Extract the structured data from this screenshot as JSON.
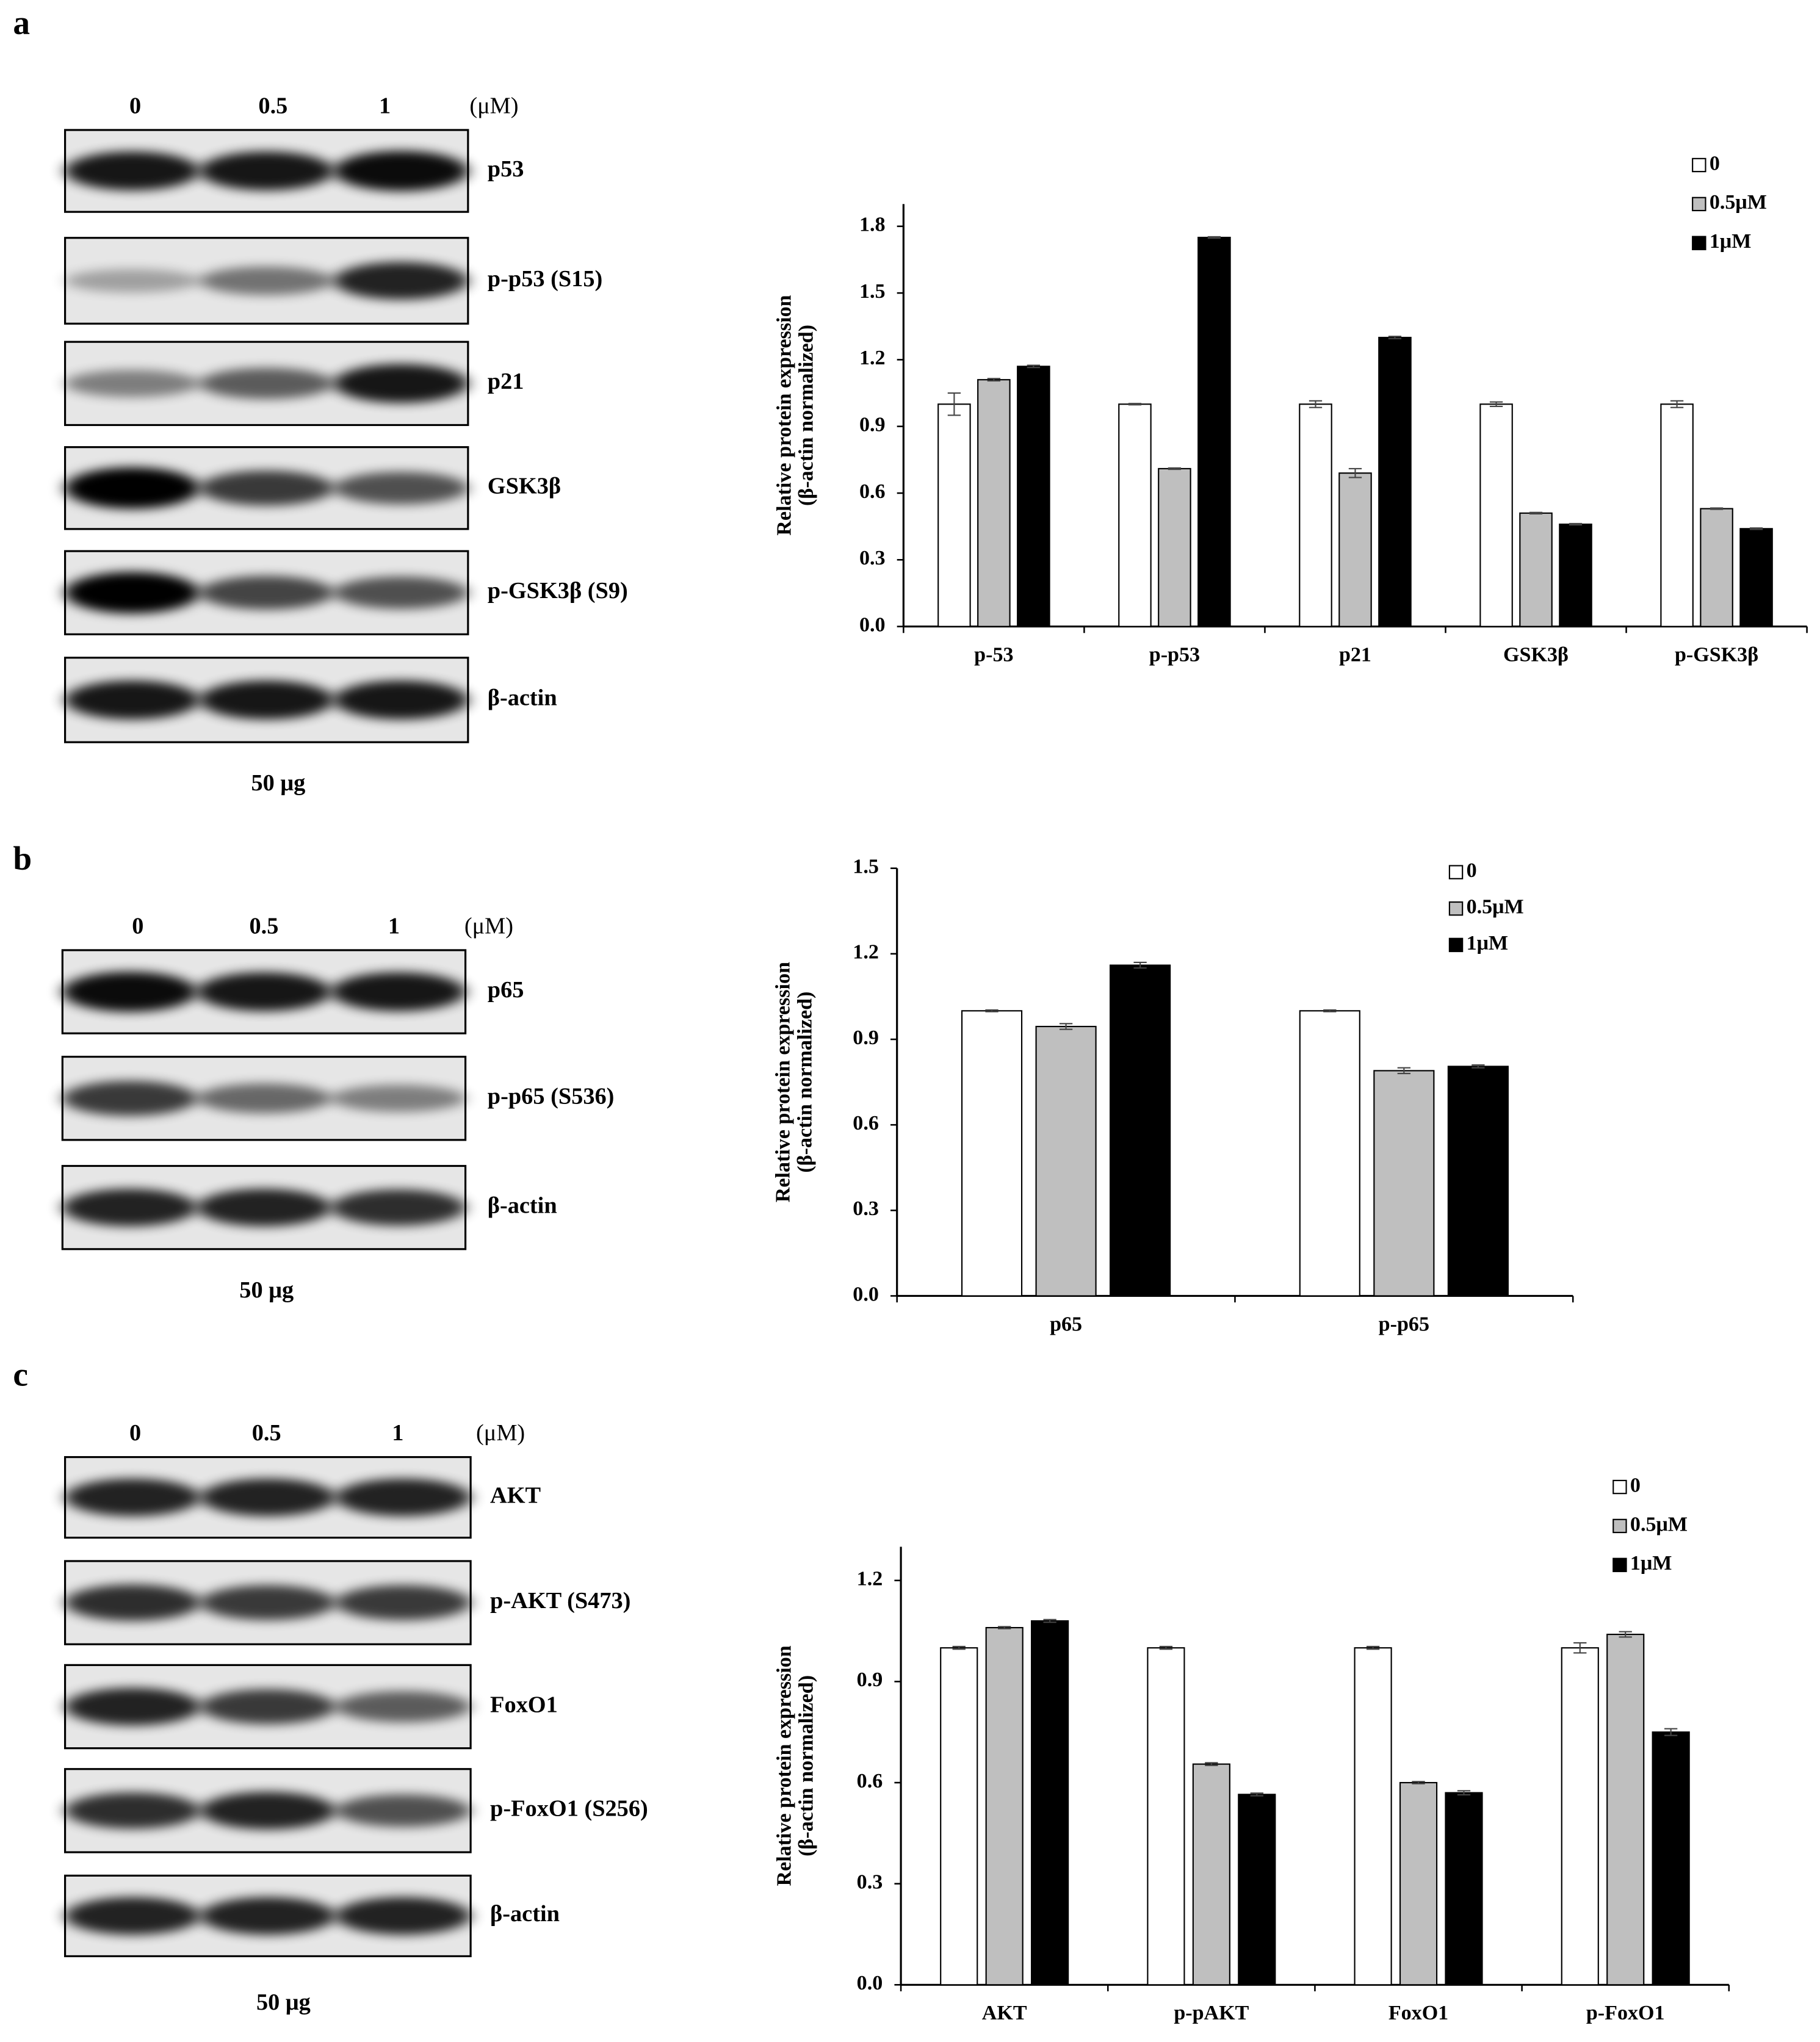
{
  "panels": [
    {
      "label": "a",
      "lanes": [
        "0",
        "0.5",
        "1"
      ],
      "unit": "(μM)",
      "bands": [
        "p53",
        "p-p53 (S15)",
        "p21",
        "GSK3β",
        "p-GSK3β (S9)",
        "β-actin"
      ],
      "loading": "50 μg"
    },
    {
      "label": "b",
      "lanes": [
        "0",
        "0.5",
        "1"
      ],
      "unit": "(μM)",
      "bands": [
        "p65",
        "p-p65 (S536)",
        "β-actin"
      ],
      "loading": "50 μg"
    },
    {
      "label": "c",
      "lanes": [
        "0",
        "0.5",
        "1"
      ],
      "unit": "(μM)",
      "bands": [
        "AKT",
        "p-AKT (S473)",
        "FoxO1",
        "p-FoxO1 (S256)",
        "β-actin"
      ],
      "loading": "50 μg"
    }
  ],
  "chart_data": [
    {
      "type": "bar",
      "ylabel": [
        "Relative protein expression",
        "(β-actin normalized)"
      ],
      "categories": [
        "p-53",
        "p-p53",
        "p21",
        "GSK3β",
        "p-GSK3β"
      ],
      "series": [
        {
          "name": "0",
          "color": "#ffffff",
          "values": [
            1.0,
            1.0,
            1.0,
            1.0,
            1.0
          ],
          "errors": [
            0.05,
            0.003,
            0.015,
            0.01,
            0.015
          ]
        },
        {
          "name": "0.5μM",
          "color": "#bfbfbf",
          "values": [
            1.11,
            0.71,
            0.69,
            0.51,
            0.53
          ],
          "errors": [
            0.005,
            0.003,
            0.02,
            0.003,
            0.003
          ]
        },
        {
          "name": "1μM",
          "color": "#000000",
          "values": [
            1.17,
            1.75,
            1.3,
            0.46,
            0.44
          ],
          "errors": [
            0.005,
            0.003,
            0.005,
            0.003,
            0.003
          ]
        }
      ],
      "ylim": [
        0,
        1.9
      ],
      "yticks": [
        {
          "value": 0,
          "label": "0.0"
        },
        {
          "value": 0.3,
          "label": "0.3"
        },
        {
          "value": 0.6,
          "label": "0.6"
        },
        {
          "value": 0.9,
          "label": "0.9"
        },
        {
          "value": 1.2,
          "label": "1.2"
        },
        {
          "value": 1.5,
          "label": "1.5"
        },
        {
          "value": 1.8,
          "label": "1.8"
        }
      ],
      "legend": "upper right",
      "grid": false
    },
    {
      "type": "bar",
      "ylabel": [
        "Relative protein expression",
        "(β-actin normalized)"
      ],
      "categories": [
        "p65",
        "p-p65"
      ],
      "series": [
        {
          "name": "0",
          "color": "#ffffff",
          "values": [
            1.0,
            1.0
          ],
          "errors": [
            0.003,
            0.003
          ]
        },
        {
          "name": "0.5μM",
          "color": "#bfbfbf",
          "values": [
            0.945,
            0.79
          ],
          "errors": [
            0.01,
            0.01
          ]
        },
        {
          "name": "1μM",
          "color": "#000000",
          "values": [
            1.16,
            0.805
          ],
          "errors": [
            0.01,
            0.005
          ]
        }
      ],
      "ylim": [
        0,
        1.5
      ],
      "yticks": [
        {
          "value": 0,
          "label": "0.0"
        },
        {
          "value": 0.3,
          "label": "0.3"
        },
        {
          "value": 0.6,
          "label": "0.6"
        },
        {
          "value": 0.9,
          "label": "0.9"
        },
        {
          "value": 1.2,
          "label": "1.2"
        },
        {
          "value": 1.5,
          "label": "1.5"
        }
      ],
      "legend": "upper right",
      "grid": false
    },
    {
      "type": "bar",
      "ylabel": [
        "Relative protein expression",
        "(β-actin normalized)"
      ],
      "categories": [
        "AKT",
        "p-pAKT",
        "FoxO1",
        "p-FoxO1"
      ],
      "series": [
        {
          "name": "0",
          "color": "#ffffff",
          "values": [
            1.0,
            1.0,
            1.0,
            1.0
          ],
          "errors": [
            0.004,
            0.004,
            0.004,
            0.015
          ]
        },
        {
          "name": "0.5μM",
          "color": "#bfbfbf",
          "values": [
            1.06,
            0.655,
            0.6,
            1.04
          ],
          "errors": [
            0.003,
            0.004,
            0.003,
            0.008
          ]
        },
        {
          "name": "1μM",
          "color": "#000000",
          "values": [
            1.08,
            0.565,
            0.57,
            0.75
          ],
          "errors": [
            0.004,
            0.004,
            0.006,
            0.01
          ]
        }
      ],
      "ylim": [
        0,
        1.3
      ],
      "yticks": [
        {
          "value": 0,
          "label": "0.0"
        },
        {
          "value": 0.3,
          "label": "0.3"
        },
        {
          "value": 0.6,
          "label": "0.6"
        },
        {
          "value": 0.9,
          "label": "0.9"
        },
        {
          "value": 1.2,
          "label": "1.2"
        }
      ],
      "legend": "upper right",
      "grid": false
    }
  ]
}
